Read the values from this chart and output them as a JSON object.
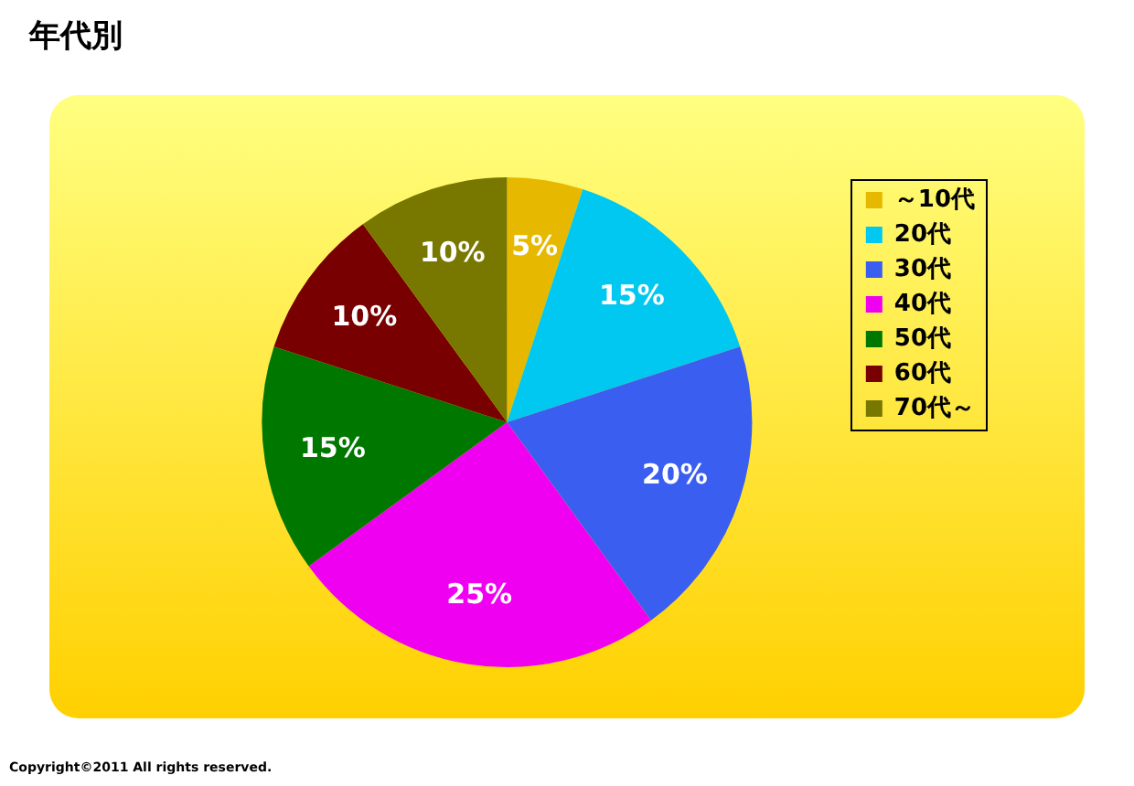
{
  "chart_data": {
    "type": "pie",
    "title": "年代別",
    "categories": [
      "～10代",
      "20代",
      "30代",
      "40代",
      "50代",
      "60代",
      "70代～"
    ],
    "values": [
      5,
      15,
      20,
      25,
      15,
      10,
      10
    ],
    "colors": [
      "#e6b800",
      "#00c8f0",
      "#3a5ff0",
      "#f000f0",
      "#007800",
      "#780000",
      "#787800"
    ],
    "value_labels": [
      "5%",
      "15%",
      "20%",
      "25%",
      "15%",
      "10%",
      "10%"
    ],
    "legend": "top right",
    "annotations": [
      "Copyright©2011 All rights reserved."
    ]
  }
}
